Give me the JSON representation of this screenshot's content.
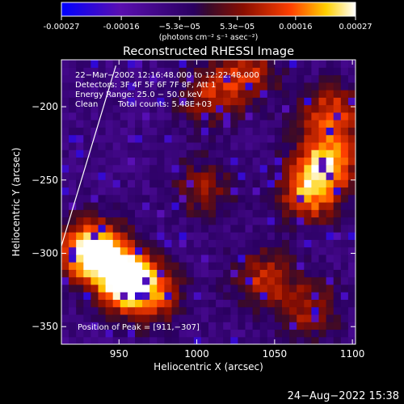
{
  "colorbar": {
    "tick_labels": [
      "-0.00027",
      "-0.00016",
      "−5.3e−05",
      "5.3e−05",
      "0.00016",
      "0.00027"
    ],
    "tick_values": [
      -0.00027,
      -0.00016,
      -5.3e-05,
      5.3e-05,
      0.00016,
      0.00027
    ],
    "unit_label": "(photons cm⁻² s⁻¹ asec⁻²)"
  },
  "chart_data": {
    "type": "heatmap",
    "title": "Reconstructed RHESSI Image",
    "xlabel": "Heliocentric X (arcsec)",
    "ylabel": "Heliocentric Y (arcsec)",
    "xlim": [
      913,
      1102
    ],
    "ylim": [
      -362,
      -168
    ],
    "x_ticks": [
      950,
      1000,
      1050,
      1100
    ],
    "y_ticks": [
      -200,
      -250,
      -300,
      -350
    ],
    "x_tick_labels": [
      "950",
      "1000",
      "1050",
      "1100"
    ],
    "y_tick_labels": [
      "−200",
      "−250",
      "−300",
      "−350"
    ],
    "colormap": [
      "#0000ff",
      "#5a0fb0",
      "#2a0060",
      "#3a0a2a",
      "#8a0e00",
      "#ff4000",
      "#ffd000",
      "#ffffff"
    ],
    "value_range": [
      -0.00027,
      0.00027
    ],
    "annotations": {
      "time": "22−Mar−2002 12:16:48.000 to 12:22:48.000",
      "detectors": "Detectors: 3F 4F 5F 6F 7F 8F, Att 1",
      "energy": "Energy Range: 25.0 − 50.0 keV",
      "clean": "Clean",
      "total_counts": "Total counts: 5.48E+03",
      "peak": "Position of Peak = [911,−307]"
    },
    "peak_position": [
      911,
      -307
    ],
    "bright_regions": [
      {
        "x": 930,
        "y": -300,
        "level": 1.0
      },
      {
        "x": 950,
        "y": -318,
        "level": 0.85
      },
      {
        "x": 966,
        "y": -330,
        "level": 0.6
      },
      {
        "x": 1080,
        "y": -240,
        "level": 0.7
      },
      {
        "x": 1070,
        "y": -262,
        "level": 0.6
      },
      {
        "x": 1085,
        "y": -208,
        "level": 0.55
      },
      {
        "x": 1040,
        "y": -320,
        "level": 0.45
      },
      {
        "x": 1002,
        "y": -258,
        "level": 0.35
      },
      {
        "x": 1005,
        "y": -195,
        "level": 0.4
      },
      {
        "x": 1030,
        "y": -180,
        "level": 0.45
      },
      {
        "x": 1070,
        "y": -340,
        "level": 0.4
      }
    ],
    "limb_line": [
      [
        913,
        -295
      ],
      [
        948,
        -172
      ]
    ]
  },
  "footer": {
    "date": "24−Aug−2022 15:38"
  }
}
